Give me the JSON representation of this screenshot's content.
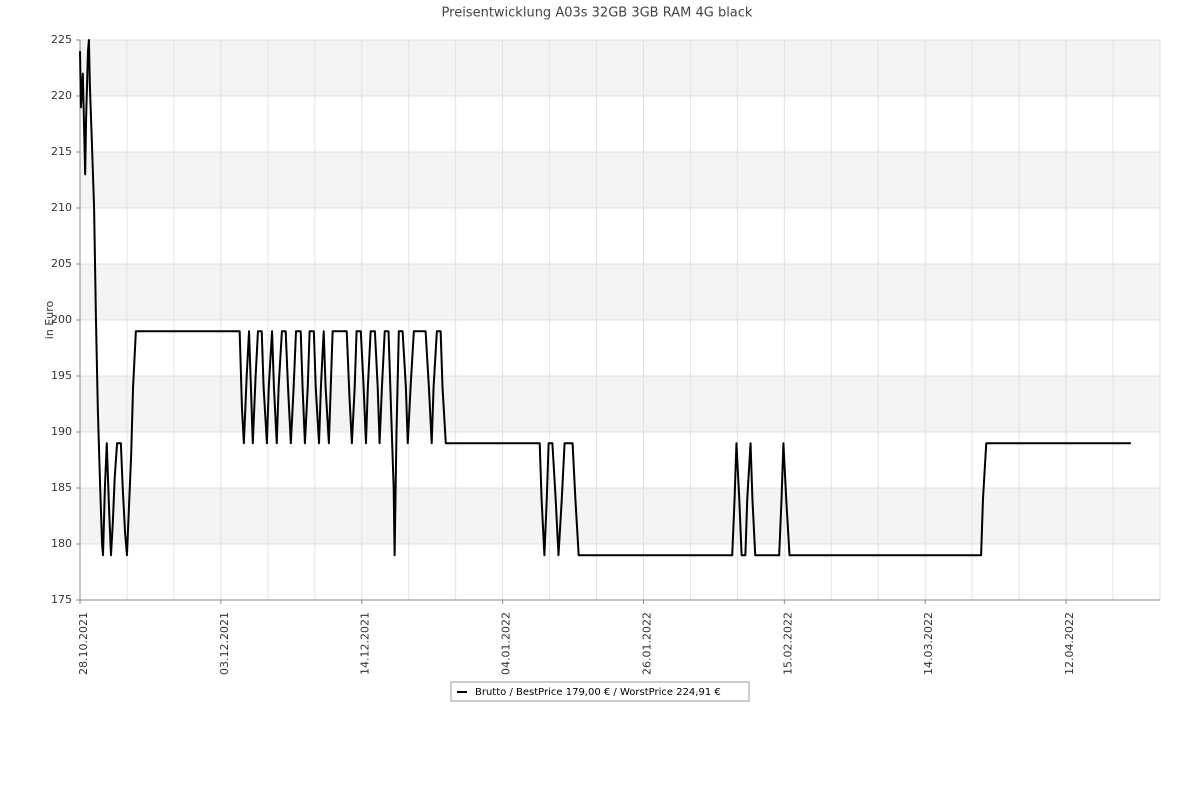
{
  "chart_data": {
    "type": "line",
    "title": "Preisentwicklung A03s 32GB 3GB RAM 4G black",
    "y_label": "in Euro",
    "xlim": [
      0,
      23
    ],
    "xticks": [
      {
        "value": 0,
        "label": "28.10.2021"
      },
      {
        "value": 3,
        "label": "03.12.2021"
      },
      {
        "value": 6,
        "label": "14.12.2021"
      },
      {
        "value": 9,
        "label": "04.01.2022"
      },
      {
        "value": 12,
        "label": "26.01.2022"
      },
      {
        "value": 15,
        "label": "15.02.2022"
      },
      {
        "value": 18,
        "label": "14.03.2022"
      },
      {
        "value": 21,
        "label": "12.04.2022"
      }
    ],
    "x_minor_grid": [
      1,
      2,
      4,
      5,
      7,
      8,
      10,
      11,
      13,
      14,
      16,
      17,
      19,
      20,
      22,
      23
    ],
    "ylim": [
      175,
      225
    ],
    "yticks": [
      175,
      180,
      185,
      190,
      195,
      200,
      205,
      210,
      215,
      220,
      225
    ],
    "grid": true,
    "alternating_bands": true,
    "legend": "bottom",
    "series": [
      {
        "name": "Brutto / BestPrice  179,00 € / WorstPrice  224,91 €",
        "color": "#000000",
        "x": [
          0,
          0.02,
          0.06,
          0.11,
          0.13,
          0.17,
          0.19,
          0.21,
          0.26,
          0.3,
          0.34,
          0.38,
          0.43,
          0.47,
          0.49,
          0.53,
          0.57,
          0.62,
          0.66,
          0.7,
          0.74,
          0.79,
          0.87,
          0.91,
          0.96,
          1.0,
          1.04,
          1.09,
          1.13,
          1.19,
          3.4,
          3.45,
          3.49,
          3.55,
          3.6,
          3.64,
          3.68,
          3.74,
          3.79,
          3.87,
          3.91,
          3.98,
          4.02,
          4.09,
          4.13,
          4.19,
          4.23,
          4.3,
          4.38,
          4.43,
          4.49,
          4.55,
          4.6,
          4.7,
          4.74,
          4.79,
          4.85,
          4.89,
          4.98,
          5.02,
          5.09,
          5.13,
          5.19,
          5.23,
          5.3,
          5.34,
          5.38,
          5.68,
          5.74,
          5.79,
          5.85,
          5.89,
          5.98,
          6.04,
          6.09,
          6.13,
          6.19,
          6.28,
          6.34,
          6.38,
          6.43,
          6.49,
          6.57,
          6.64,
          6.68,
          6.7,
          6.74,
          6.79,
          6.87,
          6.94,
          6.98,
          7.04,
          7.11,
          7.36,
          7.43,
          7.49,
          7.53,
          7.6,
          7.68,
          7.72,
          7.79,
          9.79,
          9.83,
          9.89,
          9.94,
          9.98,
          10.06,
          10.13,
          10.19,
          10.26,
          10.32,
          10.49,
          10.55,
          10.62,
          13.89,
          13.94,
          13.98,
          14.04,
          14.09,
          14.17,
          14.21,
          14.28,
          14.32,
          14.38,
          14.89,
          14.94,
          14.98,
          15.04,
          15.11,
          19.19,
          19.23,
          19.3,
          22.38
        ],
        "values": [
          224,
          219,
          222,
          213,
          218,
          224,
          225,
          221,
          215,
          210,
          200,
          192,
          185,
          180,
          179,
          185,
          189,
          183,
          179,
          182,
          186,
          189,
          189,
          185,
          181,
          179,
          183,
          188,
          194,
          199,
          199,
          192,
          189,
          195,
          199,
          194,
          189,
          195,
          199,
          199,
          194,
          189,
          194,
          199,
          194,
          189,
          194,
          199,
          199,
          194,
          189,
          194,
          199,
          199,
          194,
          189,
          194,
          199,
          199,
          194,
          189,
          194,
          199,
          194,
          189,
          194,
          199,
          199,
          193,
          189,
          194,
          199,
          199,
          194,
          189,
          194,
          199,
          199,
          194,
          189,
          194,
          199,
          199,
          190,
          185,
          179,
          190,
          199,
          199,
          194,
          189,
          194,
          199,
          199,
          194,
          189,
          194,
          199,
          199,
          194,
          189,
          189,
          184,
          179,
          184,
          189,
          189,
          184,
          179,
          184,
          189,
          189,
          184,
          179,
          179,
          184,
          189,
          184,
          179,
          179,
          184,
          189,
          184,
          179,
          179,
          184,
          189,
          184,
          179,
          179,
          184,
          189,
          189
        ]
      }
    ]
  }
}
